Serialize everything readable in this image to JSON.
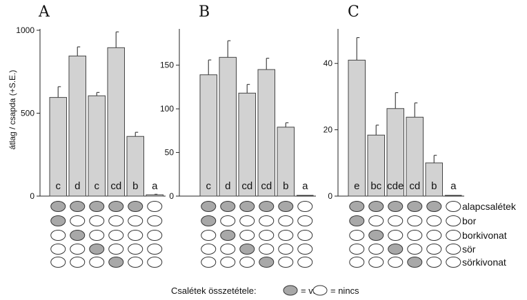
{
  "chart_data": [
    {
      "type": "bar",
      "panel": "A",
      "ylabel": "átlag / csapda (+S.E.)",
      "ylim": [
        0,
        1000
      ],
      "yticks": [
        0,
        500,
        1000
      ],
      "values": [
        595,
        845,
        605,
        895,
        360,
        8
      ],
      "errors": [
        65,
        55,
        20,
        95,
        25,
        3
      ],
      "letters": [
        "c",
        "d",
        "c",
        "cd",
        "b",
        "a"
      ]
    },
    {
      "type": "bar",
      "panel": "B",
      "ylabel": "",
      "ylim": [
        0,
        190
      ],
      "yticks": [
        0,
        50,
        100,
        150
      ],
      "values": [
        139,
        159,
        118,
        145,
        79,
        0
      ],
      "errors": [
        17,
        19,
        10,
        13,
        5,
        0
      ],
      "letters": [
        "c",
        "d",
        "cd",
        "cd",
        "b",
        "a"
      ]
    },
    {
      "type": "bar",
      "panel": "C",
      "ylabel": "",
      "ylim": [
        0,
        50
      ],
      "yticks": [
        0,
        20,
        40
      ],
      "values": [
        41,
        18.4,
        26.4,
        23.8,
        10,
        0
      ],
      "errors": [
        6.8,
        3,
        4.8,
        4.3,
        2.3,
        0
      ],
      "letters": [
        "e",
        "bc",
        "cde",
        "cd",
        "b",
        "a"
      ]
    }
  ],
  "composition": {
    "rows": [
      "alapcsalétek",
      "bor",
      "borkivonat",
      "sör",
      "sörkivonat"
    ],
    "matrix": [
      [
        1,
        1,
        1,
        1,
        1,
        0
      ],
      [
        1,
        0,
        0,
        0,
        0,
        0
      ],
      [
        0,
        1,
        0,
        0,
        0,
        0
      ],
      [
        0,
        0,
        1,
        0,
        0,
        0
      ],
      [
        0,
        0,
        0,
        1,
        0,
        0
      ]
    ]
  },
  "legend": {
    "title": "Csalétek összetétele:",
    "filled_label": "= van",
    "empty_label": "= nincs"
  },
  "colors": {
    "bar": "#d2d2d2",
    "filled": "#a8a8a8",
    "empty": "#ffffff"
  }
}
